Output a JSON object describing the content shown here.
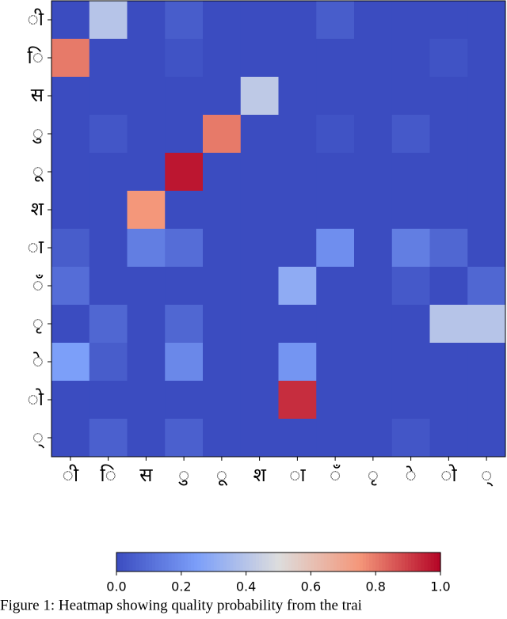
{
  "chart_data": {
    "type": "heatmap",
    "x_categories": [
      "ी",
      "ि",
      "स",
      "ु",
      "ू",
      "श",
      "ा",
      "ँ",
      "ृ",
      "े",
      "ो",
      "्"
    ],
    "y_categories": [
      "ी",
      "ि",
      "स",
      "ु",
      "ू",
      "श",
      "ा",
      "ँ",
      "ृ",
      "े",
      "ो",
      "्"
    ],
    "values": [
      [
        0,
        0.4,
        0,
        0.05,
        0,
        0,
        0,
        0.05,
        0,
        0,
        0,
        0
      ],
      [
        0.8,
        0,
        0,
        0.02,
        0,
        0,
        0,
        0,
        0,
        0,
        0.02,
        0
      ],
      [
        0,
        0,
        0,
        0,
        0,
        0.42,
        0,
        0,
        0,
        0,
        0,
        0
      ],
      [
        0,
        0.03,
        0,
        0,
        0.8,
        0,
        0,
        0.02,
        0,
        0.04,
        0,
        0
      ],
      [
        0,
        0,
        0,
        0.97,
        0,
        0,
        0,
        0,
        0,
        0,
        0,
        0
      ],
      [
        0,
        0,
        0.75,
        0,
        0,
        0,
        0,
        0,
        0,
        0,
        0,
        0
      ],
      [
        0.05,
        0,
        0.15,
        0.1,
        0,
        0,
        0,
        0.2,
        0,
        0.15,
        0.08,
        0
      ],
      [
        0.1,
        0,
        0,
        0,
        0,
        0,
        0.3,
        0,
        0,
        0.04,
        0,
        0.08
      ],
      [
        0,
        0.08,
        0,
        0.08,
        0,
        0,
        0,
        0,
        0,
        0,
        0.4,
        0.4
      ],
      [
        0.25,
        0.05,
        0,
        0.18,
        0,
        0,
        0.22,
        0,
        0,
        0,
        0,
        0
      ],
      [
        0,
        0,
        0,
        0,
        0,
        0,
        0.93,
        0,
        0,
        0,
        0,
        0
      ],
      [
        0,
        0.06,
        0,
        0.06,
        0,
        0,
        0,
        0,
        0,
        0.03,
        0,
        0
      ]
    ],
    "colormap": "coolwarm",
    "clim": [
      0,
      1
    ],
    "cticks": [
      {
        "value": 0,
        "label": "0.0"
      },
      {
        "value": 0.2,
        "label": "0.2"
      },
      {
        "value": 0.4,
        "label": "0.4"
      },
      {
        "value": 0.6,
        "label": "0.6"
      },
      {
        "value": 0.8,
        "label": "0.8"
      },
      {
        "value": 1,
        "label": "1.0"
      }
    ],
    "caption": "Figure 1: Heatmap showing quality probability from the trai"
  }
}
